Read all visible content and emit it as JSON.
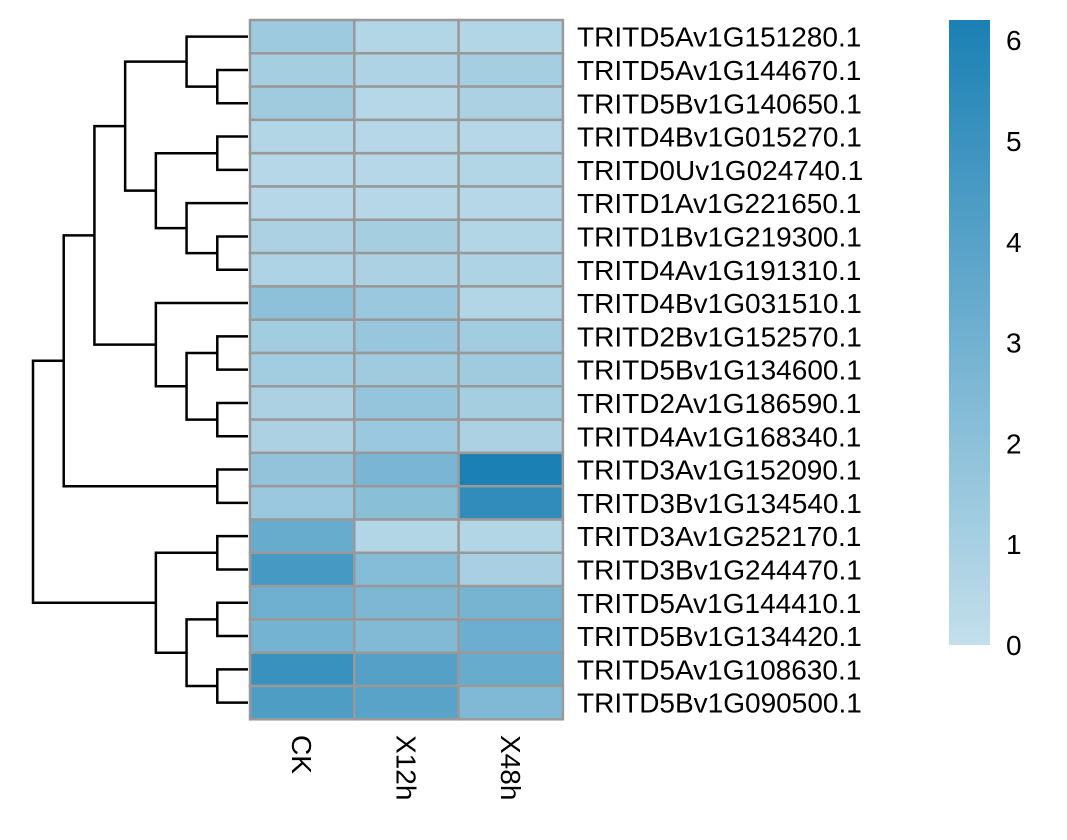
{
  "chart_data": {
    "type": "heatmap",
    "title": "",
    "columns": [
      "CK",
      "X12h",
      "X48h"
    ],
    "rows": [
      "TRITD5Av1G151280.1",
      "TRITD5Av1G144670.1",
      "TRITD5Bv1G140650.1",
      "TRITD4Bv1G015270.1",
      "TRITD0Uv1G024740.1",
      "TRITD1Av1G221650.1",
      "TRITD1Bv1G219300.1",
      "TRITD4Av1G191310.1",
      "TRITD4Bv1G031510.1",
      "TRITD2Bv1G152570.1",
      "TRITD5Bv1G134600.1",
      "TRITD2Av1G186590.1",
      "TRITD4Av1G168340.1",
      "TRITD3Av1G152090.1",
      "TRITD3Bv1G134540.1",
      "TRITD3Av1G252170.1",
      "TRITD3Bv1G244470.1",
      "TRITD5Av1G144410.1",
      "TRITD5Bv1G134420.1",
      "TRITD5Av1G108630.1",
      "TRITD5Bv1G090500.1"
    ],
    "values": [
      [
        1.4,
        0.6,
        0.6
      ],
      [
        1.1,
        0.8,
        1.1
      ],
      [
        1.3,
        0.5,
        0.9
      ],
      [
        0.6,
        0.5,
        0.5
      ],
      [
        0.5,
        0.5,
        0.6
      ],
      [
        0.5,
        0.5,
        0.5
      ],
      [
        0.9,
        1.1,
        0.6
      ],
      [
        0.8,
        0.9,
        0.8
      ],
      [
        2.0,
        1.5,
        0.6
      ],
      [
        1.2,
        1.6,
        1.2
      ],
      [
        1.2,
        1.3,
        1.3
      ],
      [
        0.9,
        1.7,
        1.1
      ],
      [
        0.9,
        1.5,
        0.9
      ],
      [
        1.8,
        2.7,
        6.2
      ],
      [
        1.5,
        2.1,
        5.4
      ],
      [
        3.4,
        0.6,
        0.6
      ],
      [
        4.6,
        2.3,
        1.0
      ],
      [
        3.1,
        2.6,
        2.8
      ],
      [
        2.9,
        2.4,
        3.2
      ],
      [
        5.1,
        4.1,
        3.4
      ],
      [
        4.3,
        3.9,
        2.5
      ]
    ],
    "colorbar": {
      "min": 0,
      "max": 6.2,
      "ticks": [
        "0",
        "1",
        "2",
        "3",
        "4",
        "5",
        "6"
      ],
      "color_low": "#c3dfeb",
      "color_high": "#1b80b4"
    },
    "row_dendrogram": true,
    "cell_border_color": "#999999"
  }
}
